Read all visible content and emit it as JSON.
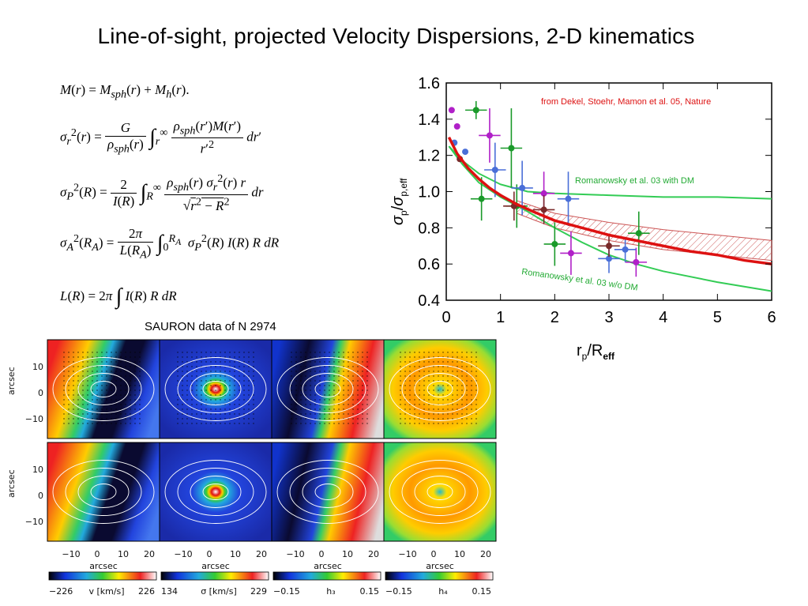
{
  "slide": {
    "title": "Line-of-sight, projected  Velocity Dispersions, 2-D kinematics",
    "sauron_label": "SAURON data of N 2974"
  },
  "equations": {
    "eq1": "M(r) = M_sph(r) + M_h(r).",
    "eq2": "σ_r²(r) = G / ρ_sph(r) ∫_r^∞ ρ_sph(r′) M(r′) / r′² dr′",
    "eq3": "σ_P²(R) = 2 / I(R) ∫_R^∞ ρ_sph(r) σ_r²(r) r / √(r² − R²) dr",
    "eq4": "σ_A²(R_A) = 2π / L(R_A) ∫_0^(R_A) σ_P²(R) I(R) R dR",
    "eq5": "L(R) = 2π ∫ I(R) R dR"
  },
  "chart_data": {
    "type": "scatter",
    "title": "",
    "annotation": "from Dekel, Stoehr, Mamon et al. 05, Nature",
    "xlabel": "r_p/R_eff",
    "ylabel": "σ_p/σ_p,eff",
    "xlim": [
      0,
      6
    ],
    "ylim": [
      0.4,
      1.6
    ],
    "x_ticks": [
      "0",
      "1",
      "2",
      "3",
      "4",
      "5",
      "6"
    ],
    "y_ticks": [
      "0.4",
      "0.6",
      "0.8",
      "1.0",
      "1.2",
      "1.4",
      "1.6"
    ],
    "grid": false,
    "curve_labels": [
      "Romanowsky et al. 03 with DM",
      "Romanowsky et al. 03 w/o DM"
    ],
    "colors": {
      "model": "#dd1111",
      "romanowsky": "#33cc55",
      "band": "#cc5555",
      "green_pts": "#1a9a2a",
      "purple_pts": "#b020c8",
      "blue_pts": "#4a6fd8",
      "brown_pts": "#7a2a2a",
      "annotation": "#dd1111",
      "label_green": "#22aa33"
    },
    "series": [
      {
        "role": "model",
        "x": [
          0.05,
          0.2,
          0.4,
          0.6,
          0.8,
          1.0,
          1.3,
          1.6,
          2.0,
          2.5,
          3.0,
          3.5,
          4.0,
          4.5,
          5.0,
          5.5,
          6.0
        ],
        "y": [
          1.3,
          1.21,
          1.13,
          1.07,
          1.02,
          0.98,
          0.93,
          0.89,
          0.84,
          0.8,
          0.76,
          0.73,
          0.7,
          0.67,
          0.65,
          0.62,
          0.6
        ]
      },
      {
        "role": "romanowsky_with_dm",
        "x": [
          0.05,
          0.3,
          0.6,
          1.0,
          1.5,
          2.0,
          3.0,
          4.0,
          5.0,
          6.0
        ],
        "y": [
          1.25,
          1.17,
          1.1,
          1.04,
          1.0,
          0.99,
          0.98,
          0.97,
          0.97,
          0.96
        ]
      },
      {
        "role": "romanowsky_without_dm",
        "x": [
          0.05,
          0.3,
          0.6,
          1.0,
          1.5,
          2.0,
          2.5,
          3.0,
          3.5,
          4.0,
          5.0,
          6.0
        ],
        "y": [
          1.25,
          1.15,
          1.05,
          0.97,
          0.89,
          0.8,
          0.72,
          0.65,
          0.6,
          0.56,
          0.5,
          0.45
        ]
      },
      {
        "role": "band_upper",
        "x": [
          1.3,
          2.0,
          3.0,
          4.0,
          5.0,
          6.0
        ],
        "y": [
          0.95,
          0.88,
          0.83,
          0.79,
          0.76,
          0.73
        ]
      },
      {
        "role": "band_lower",
        "x": [
          1.3,
          2.0,
          3.0,
          4.0,
          5.0,
          6.0
        ],
        "y": [
          0.88,
          0.8,
          0.73,
          0.68,
          0.65,
          0.62
        ]
      }
    ],
    "points": [
      {
        "group": "green",
        "x": 0.55,
        "y": 1.45,
        "err": 0.05
      },
      {
        "group": "green",
        "x": 0.65,
        "y": 0.96,
        "err": 0.12
      },
      {
        "group": "green",
        "x": 1.2,
        "y": 1.24,
        "err": 0.22
      },
      {
        "group": "green",
        "x": 1.3,
        "y": 0.92,
        "err": 0.12
      },
      {
        "group": "green",
        "x": 2.0,
        "y": 0.71,
        "err": 0.12
      },
      {
        "group": "green",
        "x": 3.55,
        "y": 0.77,
        "err": 0.12
      },
      {
        "group": "purple",
        "x": 0.8,
        "y": 1.31,
        "err": 0.15
      },
      {
        "group": "purple",
        "x": 1.8,
        "y": 0.99,
        "err": 0.12
      },
      {
        "group": "purple",
        "x": 2.3,
        "y": 0.66,
        "err": 0.12
      },
      {
        "group": "purple",
        "x": 3.5,
        "y": 0.61,
        "err": 0.08
      },
      {
        "group": "blue",
        "x": 0.9,
        "y": 1.12,
        "err": 0.15
      },
      {
        "group": "blue",
        "x": 1.4,
        "y": 1.02,
        "err": 0.15
      },
      {
        "group": "blue",
        "x": 2.25,
        "y": 0.96,
        "err": 0.15
      },
      {
        "group": "blue",
        "x": 3.0,
        "y": 0.63,
        "err": 0.08
      },
      {
        "group": "blue",
        "x": 3.3,
        "y": 0.68,
        "err": 0.07
      },
      {
        "group": "brown",
        "x": 1.25,
        "y": 0.92,
        "err": 0.08
      },
      {
        "group": "brown",
        "x": 1.8,
        "y": 0.9,
        "err": 0.08
      },
      {
        "group": "brown",
        "x": 3.0,
        "y": 0.7,
        "err": 0.06
      },
      {
        "group": "purple",
        "x": 0.1,
        "y": 1.45,
        "err": 0.0
      },
      {
        "group": "purple",
        "x": 0.2,
        "y": 1.36,
        "err": 0.0
      },
      {
        "group": "blue",
        "x": 0.15,
        "y": 1.27,
        "err": 0.0
      },
      {
        "group": "blue",
        "x": 0.35,
        "y": 1.22,
        "err": 0.0
      },
      {
        "group": "brown",
        "x": 0.25,
        "y": 1.18,
        "err": 0.0
      }
    ]
  },
  "sauron": {
    "y_axis_label": "arcsec",
    "y_ticks": [
      "10",
      "0",
      "−10"
    ],
    "x_ticks": [
      "−10",
      "0",
      "10",
      "20"
    ],
    "x_axis_label": "arcsec",
    "colorbars": [
      {
        "min": "−226",
        "quantity": "v [km/s]",
        "max": "226"
      },
      {
        "min": "134",
        "quantity": "σ [km/s]",
        "max": "229"
      },
      {
        "min": "−0.15",
        "quantity": "h₃",
        "max": "0.15"
      },
      {
        "min": "−0.15",
        "quantity": "h₄",
        "max": "0.15"
      }
    ]
  }
}
